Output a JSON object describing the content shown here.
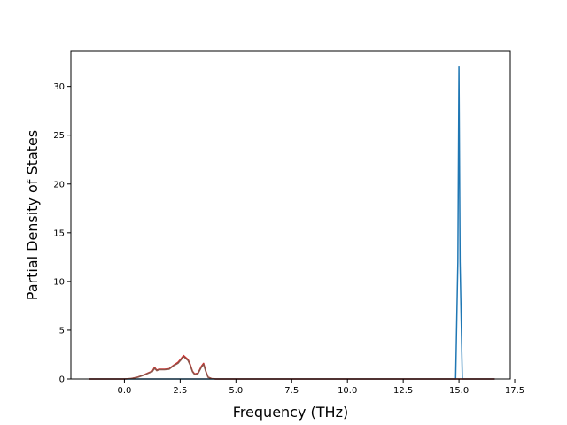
{
  "chart_data": {
    "type": "line",
    "title": "",
    "xlabel": "Frequency (THz)",
    "ylabel": "Partial Density of States",
    "xlim": [
      -2.4,
      17.3
    ],
    "ylim": [
      0,
      33.6
    ],
    "x_ticks": [
      0.0,
      2.5,
      5.0,
      7.5,
      10.0,
      12.5,
      15.0,
      17.5
    ],
    "x_tick_labels": [
      "0.0",
      "2.5",
      "5.0",
      "7.5",
      "10.0",
      "12.5",
      "15.0",
      "17.5"
    ],
    "y_ticks": [
      0,
      5,
      10,
      15,
      20,
      25,
      30
    ],
    "y_tick_labels": [
      "0",
      "5",
      "10",
      "15",
      "20",
      "25",
      "30"
    ],
    "grid": false,
    "legend": "none",
    "series": [
      {
        "color": "#1f77b4",
        "x": [
          -1.6,
          14.85,
          14.95,
          15.0,
          15.05,
          15.15,
          16.6
        ],
        "y": [
          0,
          0,
          12,
          32.0,
          12,
          0,
          0
        ]
      },
      {
        "color": "#d62728",
        "x": [
          -1.6,
          0.0,
          0.3,
          0.6,
          0.9,
          1.1,
          1.25,
          1.35,
          1.45,
          1.55,
          1.8,
          2.0,
          2.2,
          2.4,
          2.55,
          2.65,
          2.75,
          2.85,
          2.95,
          3.05,
          3.15,
          3.3,
          3.45,
          3.55,
          3.65,
          3.75,
          3.9,
          4.1,
          16.6
        ],
        "y": [
          0,
          0,
          0.05,
          0.2,
          0.45,
          0.65,
          0.8,
          1.2,
          0.9,
          1.0,
          1.0,
          1.05,
          1.4,
          1.7,
          2.1,
          2.4,
          2.2,
          2.0,
          1.5,
          0.8,
          0.5,
          0.6,
          1.3,
          1.6,
          0.8,
          0.2,
          0.05,
          0,
          0
        ]
      },
      {
        "color": "#8c564b",
        "x": [
          -1.6,
          0.0,
          0.3,
          0.6,
          0.9,
          1.1,
          1.25,
          1.35,
          1.45,
          1.55,
          1.8,
          2.0,
          2.2,
          2.4,
          2.55,
          2.65,
          2.75,
          2.85,
          2.95,
          3.05,
          3.15,
          3.3,
          3.45,
          3.55,
          3.65,
          3.75,
          3.9,
          4.1,
          16.6
        ],
        "y": [
          0,
          0,
          0.04,
          0.18,
          0.42,
          0.62,
          0.75,
          1.1,
          0.85,
          0.95,
          0.95,
          1.0,
          1.35,
          1.6,
          2.0,
          2.3,
          2.1,
          1.9,
          1.4,
          0.75,
          0.45,
          0.55,
          1.2,
          1.5,
          0.75,
          0.18,
          0.04,
          0,
          0
        ]
      }
    ]
  }
}
